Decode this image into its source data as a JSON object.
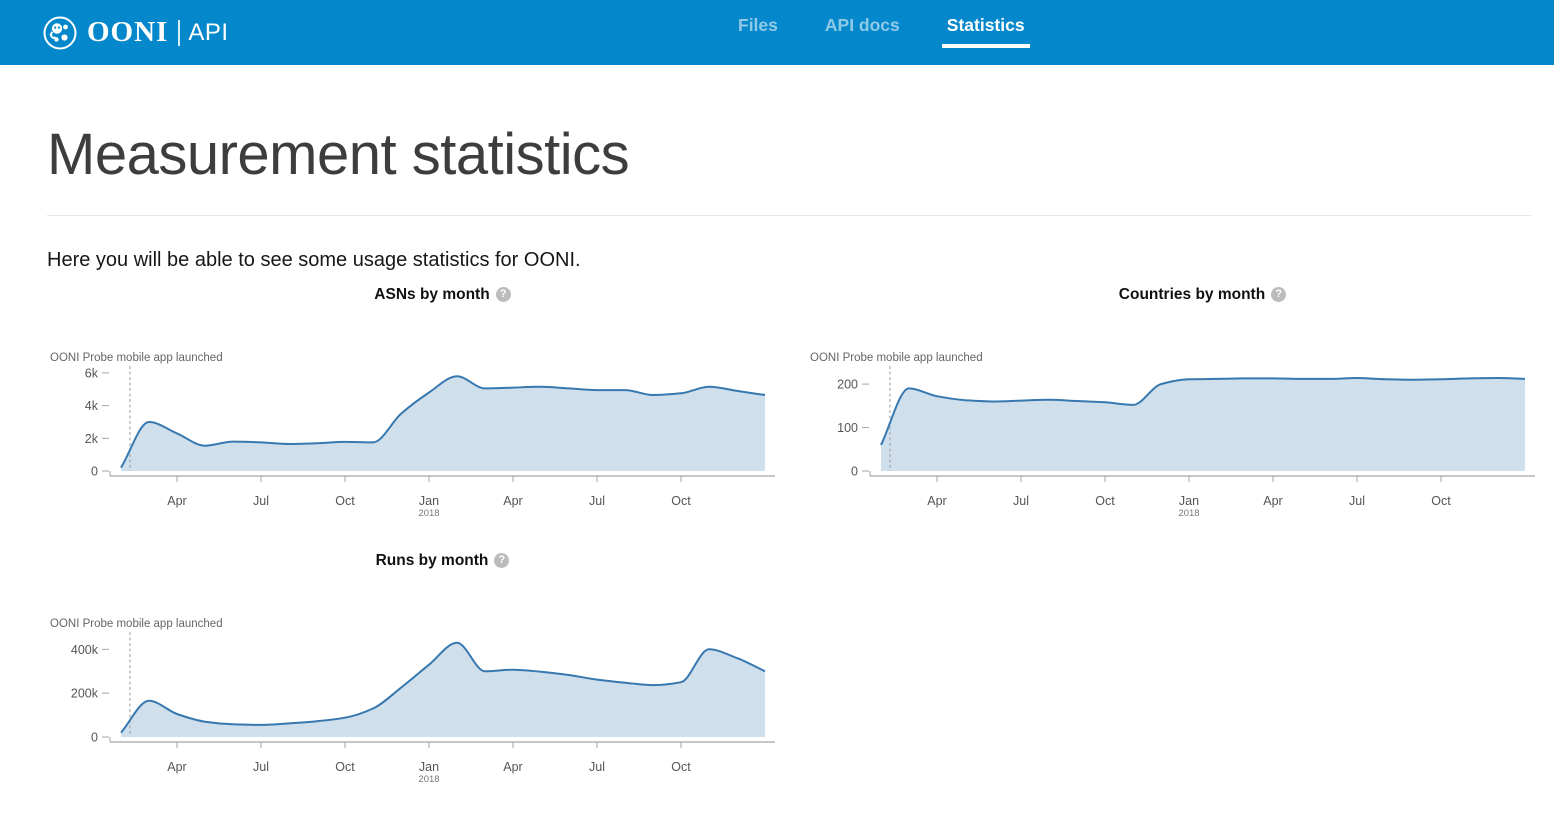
{
  "header": {
    "brand": {
      "name": "OONI",
      "suffix": "API"
    },
    "nav": [
      {
        "label": "Files",
        "active": false
      },
      {
        "label": "API docs",
        "active": false
      },
      {
        "label": "Statistics",
        "active": true
      }
    ]
  },
  "page": {
    "title": "Measurement statistics",
    "intro": "Here you will be able to see some usage statistics for OONI."
  },
  "icons": {
    "help": "?"
  },
  "colors": {
    "header_bg": "#0588cb",
    "nav_inactive": "rgba(255,255,255,0.55)",
    "nav_active": "#ffffff",
    "line": "#3778af",
    "fill": "#cfdfec",
    "axis": "#a5a5a5",
    "tick_text": "#555555",
    "annotation_text": "#666666",
    "dashed_line": "#9e9e9e"
  },
  "chart_data": [
    {
      "id": "asns-by-month",
      "type": "area",
      "title": "ASNs by month",
      "annotation": "OONI Probe mobile app launched",
      "annotation_month_index": 0.32,
      "grid": false,
      "legend": "none",
      "x": [
        "2017-02",
        "2017-03",
        "2017-04",
        "2017-05",
        "2017-06",
        "2017-07",
        "2017-08",
        "2017-09",
        "2017-10",
        "2017-11",
        "2017-12",
        "2018-01",
        "2018-02",
        "2018-03",
        "2018-04",
        "2018-05",
        "2018-06",
        "2018-07",
        "2018-08",
        "2018-09",
        "2018-10",
        "2018-11",
        "2018-12",
        "2019-01"
      ],
      "values": [
        200,
        3000,
        2300,
        1550,
        1800,
        1750,
        1650,
        1700,
        1780,
        1750,
        3500,
        4800,
        5800,
        5050,
        5100,
        5150,
        5050,
        4950,
        4950,
        4650,
        4750,
        5150,
        4900,
        4650
      ],
      "ylim": [
        0,
        6300
      ],
      "y_ticks": [
        {
          "v": 0,
          "label": "0"
        },
        {
          "v": 2000,
          "label": "2k"
        },
        {
          "v": 4000,
          "label": "4k"
        },
        {
          "v": 6000,
          "label": "6k"
        }
      ],
      "x_ticks": [
        {
          "i": 2,
          "label": "Apr"
        },
        {
          "i": 5,
          "label": "Jul"
        },
        {
          "i": 8,
          "label": "Oct"
        },
        {
          "i": 11,
          "label": "Jan",
          "year": "2018"
        },
        {
          "i": 14,
          "label": "Apr"
        },
        {
          "i": 17,
          "label": "Jul"
        },
        {
          "i": 20,
          "label": "Oct"
        }
      ]
    },
    {
      "id": "countries-by-month",
      "type": "area",
      "title": "Countries by month",
      "annotation": "OONI Probe mobile app launched",
      "annotation_month_index": 0.32,
      "grid": false,
      "legend": "none",
      "x": [
        "2017-02",
        "2017-03",
        "2017-04",
        "2017-05",
        "2017-06",
        "2017-07",
        "2017-08",
        "2017-09",
        "2017-10",
        "2017-11",
        "2017-12",
        "2018-01",
        "2018-02",
        "2018-03",
        "2018-04",
        "2018-05",
        "2018-06",
        "2018-07",
        "2018-08",
        "2018-09",
        "2018-10",
        "2018-11",
        "2018-12",
        "2019-01"
      ],
      "values": [
        60,
        190,
        172,
        163,
        160,
        162,
        164,
        161,
        158,
        152,
        200,
        211,
        212,
        213,
        213,
        212,
        212,
        214,
        211,
        210,
        211,
        213,
        214,
        212
      ],
      "ylim": [
        0,
        237
      ],
      "y_ticks": [
        {
          "v": 0,
          "label": "0"
        },
        {
          "v": 100,
          "label": "100"
        },
        {
          "v": 200,
          "label": "200"
        }
      ],
      "x_ticks": [
        {
          "i": 2,
          "label": "Apr"
        },
        {
          "i": 5,
          "label": "Jul"
        },
        {
          "i": 8,
          "label": "Oct"
        },
        {
          "i": 11,
          "label": "Jan",
          "year": "2018"
        },
        {
          "i": 14,
          "label": "Apr"
        },
        {
          "i": 17,
          "label": "Jul"
        },
        {
          "i": 20,
          "label": "Oct"
        }
      ]
    },
    {
      "id": "runs-by-month",
      "type": "area",
      "title": "Runs by month",
      "annotation": "OONI Probe mobile app launched",
      "annotation_month_index": 0.32,
      "grid": false,
      "legend": "none",
      "x": [
        "2017-02",
        "2017-03",
        "2017-04",
        "2017-05",
        "2017-06",
        "2017-07",
        "2017-08",
        "2017-09",
        "2017-10",
        "2017-11",
        "2017-12",
        "2018-01",
        "2018-02",
        "2018-03",
        "2018-04",
        "2018-05",
        "2018-06",
        "2018-07",
        "2018-08",
        "2018-09",
        "2018-10",
        "2018-11",
        "2018-12",
        "2019-01"
      ],
      "values": [
        20000,
        165000,
        105000,
        70000,
        58000,
        55000,
        62000,
        72000,
        88000,
        130000,
        225000,
        330000,
        430000,
        300000,
        307000,
        298000,
        283000,
        262000,
        248000,
        237000,
        250000,
        400000,
        360000,
        300000
      ],
      "ylim": [
        0,
        470000
      ],
      "y_ticks": [
        {
          "v": 0,
          "label": "0"
        },
        {
          "v": 200000,
          "label": "200k"
        },
        {
          "v": 400000,
          "label": "400k"
        }
      ],
      "x_ticks": [
        {
          "i": 2,
          "label": "Apr"
        },
        {
          "i": 5,
          "label": "Jul"
        },
        {
          "i": 8,
          "label": "Oct"
        },
        {
          "i": 11,
          "label": "Jan",
          "year": "2018"
        },
        {
          "i": 14,
          "label": "Apr"
        },
        {
          "i": 17,
          "label": "Jul"
        },
        {
          "i": 20,
          "label": "Oct"
        }
      ]
    }
  ]
}
